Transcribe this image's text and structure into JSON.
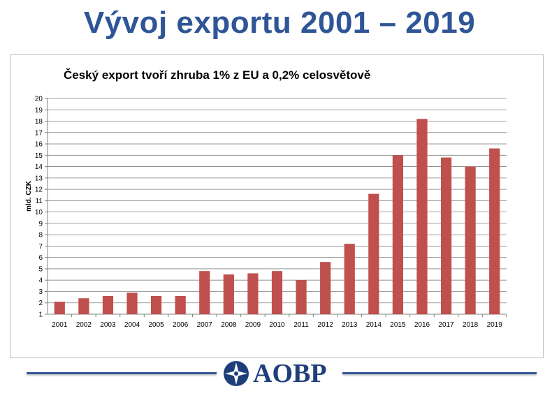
{
  "slide": {
    "title": "Vývoj exportu 2001 – 2019",
    "logo_text": "AOBP"
  },
  "colors": {
    "title": "#2f5597",
    "bar": "#c0504d",
    "grid": "#808080",
    "footer_line": "#2f5597",
    "logo": "#1f3f7a"
  },
  "chart_data": {
    "type": "bar",
    "title": "Český export tvoří zhruba 1% z EU a 0,2% celosvětově",
    "xlabel": "",
    "ylabel": "mld. CZK",
    "ylim": [
      1,
      20
    ],
    "yticks": [
      1,
      2,
      3,
      4,
      5,
      6,
      7,
      8,
      9,
      10,
      11,
      12,
      13,
      14,
      15,
      16,
      17,
      18,
      19,
      20
    ],
    "grid": true,
    "legend": "none",
    "categories": [
      "2001",
      "2002",
      "2003",
      "2004",
      "2005",
      "2006",
      "2007",
      "2008",
      "2009",
      "2010",
      "2011",
      "2012",
      "2013",
      "2014",
      "2015",
      "2016",
      "2017",
      "2018",
      "2019"
    ],
    "values": [
      2.1,
      2.4,
      2.6,
      2.9,
      2.6,
      2.6,
      4.8,
      4.5,
      4.6,
      4.8,
      4.0,
      5.6,
      7.2,
      11.6,
      15.0,
      18.2,
      14.8,
      14.0,
      15.6
    ]
  }
}
